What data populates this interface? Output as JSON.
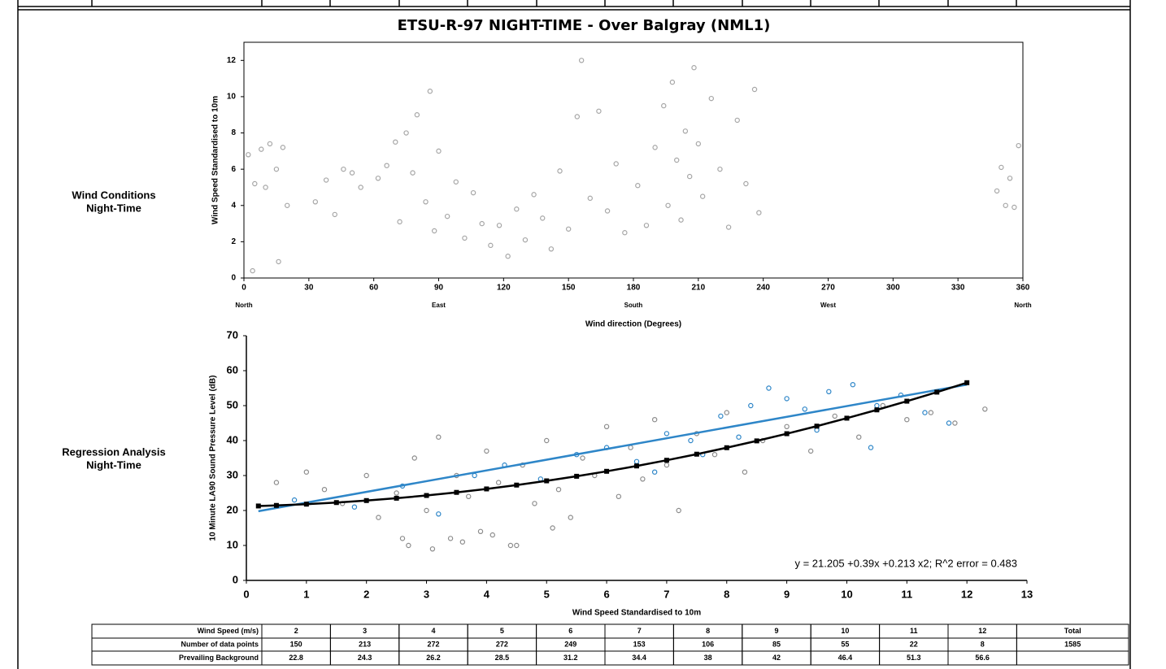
{
  "sections": [
    {
      "line1": "Wind Conditions",
      "line2": "Night-Time"
    },
    {
      "line1": "Regression Analysis",
      "line2": "Night-Time"
    }
  ],
  "chart_data": [
    {
      "type": "scatter",
      "title": "ETSU-R-97 NIGHT-TIME - Over Balgray (NML1)",
      "x_label": "Wind direction (Degrees)",
      "y_label": "Wind Speed Standardised to 10m",
      "xlim": [
        0,
        360
      ],
      "xticks": [
        0,
        30,
        60,
        90,
        120,
        150,
        180,
        210,
        240,
        270,
        300,
        330,
        360
      ],
      "ylim": [
        0,
        13
      ],
      "yticks": [
        0,
        2,
        4,
        6,
        8,
        10,
        12
      ],
      "direction_labels": [
        {
          "value": 0,
          "label": "North"
        },
        {
          "value": 90,
          "label": "East"
        },
        {
          "value": 180,
          "label": "South"
        },
        {
          "value": 270,
          "label": "West"
        },
        {
          "value": 360,
          "label": "North"
        }
      ],
      "series": [
        {
          "kind": "points",
          "color": "#a6a6a6",
          "x": [
            2,
            5,
            8,
            12,
            15,
            18,
            20,
            4,
            10,
            16,
            33,
            38,
            42,
            46,
            50,
            54,
            62,
            66,
            70,
            72,
            75,
            78,
            80,
            84,
            86,
            88,
            90,
            94,
            98,
            102,
            106,
            110,
            114,
            118,
            122,
            126,
            130,
            134,
            138,
            142,
            146,
            150,
            154,
            156,
            160,
            164,
            168,
            172,
            176,
            182,
            186,
            190,
            194,
            196,
            198,
            200,
            202,
            204,
            206,
            208,
            210,
            212,
            216,
            220,
            224,
            228,
            232,
            236,
            238,
            348,
            350,
            352,
            354,
            356,
            358
          ],
          "values": [
            6.8,
            5.2,
            7.1,
            7.4,
            6.0,
            7.2,
            4.0,
            0.4,
            5.0,
            0.9,
            4.2,
            5.4,
            3.5,
            6.0,
            5.8,
            5.0,
            5.5,
            6.2,
            7.5,
            3.1,
            8.0,
            5.8,
            9.0,
            4.2,
            10.3,
            2.6,
            7.0,
            3.4,
            5.3,
            2.2,
            4.7,
            3.0,
            1.8,
            2.9,
            1.2,
            3.8,
            2.1,
            4.6,
            3.3,
            1.6,
            5.9,
            2.7,
            8.9,
            12.0,
            4.4,
            9.2,
            3.7,
            6.3,
            2.5,
            5.1,
            2.9,
            7.2,
            9.5,
            4.0,
            10.8,
            6.5,
            3.2,
            8.1,
            5.6,
            11.6,
            7.4,
            4.5,
            9.9,
            6.0,
            2.8,
            8.7,
            5.2,
            10.4,
            3.6,
            4.8,
            6.1,
            4.0,
            5.5,
            3.9,
            7.3
          ]
        }
      ]
    },
    {
      "type": "scatter",
      "x_label": "Wind Speed Standardised to 10m",
      "y_label": "10 Minute LA90 Sound Pressure Level (dB)",
      "annotation": "y = 21.205 +0.39x +0.213 x2; R^2 error = 0.483",
      "xlim": [
        0,
        13
      ],
      "xticks": [
        0,
        1,
        2,
        3,
        4,
        5,
        6,
        7,
        8,
        9,
        10,
        11,
        12,
        13
      ],
      "ylim": [
        0,
        70
      ],
      "yticks": [
        0,
        10,
        20,
        30,
        40,
        50,
        60,
        70
      ],
      "series": [
        {
          "kind": "points",
          "color": "#8c8c8c",
          "x": [
            0.5,
            1,
            1.3,
            1.6,
            2,
            2.2,
            2.5,
            2.7,
            2.8,
            3,
            3.2,
            3.4,
            3.5,
            3.7,
            3.9,
            4,
            4.2,
            4.4,
            4.6,
            4.8,
            5,
            5.2,
            5.4,
            5.6,
            5.8,
            6,
            6.2,
            6.4,
            6.6,
            6.8,
            7,
            7.2,
            7.5,
            7.8,
            8,
            8.3,
            8.6,
            9,
            9.4,
            9.8,
            10.2,
            10.6,
            11,
            11.4,
            11.8,
            12.3,
            2.6,
            3.1,
            3.6,
            4.1,
            4.5,
            5.1
          ],
          "values": [
            28,
            31,
            26,
            22,
            30,
            18,
            25,
            10,
            35,
            20,
            41,
            12,
            30,
            24,
            14,
            37,
            28,
            10,
            33,
            22,
            40,
            26,
            18,
            35,
            30,
            44,
            24,
            38,
            29,
            46,
            33,
            20,
            42,
            36,
            48,
            31,
            40,
            44,
            37,
            47,
            41,
            50,
            46,
            48,
            45,
            49,
            12,
            9,
            11,
            13,
            10,
            15
          ]
        },
        {
          "kind": "points",
          "color": "#2e86c8",
          "x": [
            0.8,
            1.8,
            2.6,
            3.2,
            3.8,
            4.3,
            4.9,
            5.5,
            6,
            6.5,
            7,
            7.4,
            7.9,
            8.4,
            8.7,
            9,
            9.3,
            9.7,
            10.1,
            10.5,
            10.9,
            11.3,
            11.7,
            6.8,
            7.6,
            8.2,
            9.5,
            10.4
          ],
          "values": [
            23,
            21,
            27,
            19,
            30,
            33,
            29,
            36,
            38,
            34,
            42,
            40,
            47,
            50,
            55,
            52,
            49,
            54,
            56,
            50,
            53,
            48,
            45,
            31,
            36,
            41,
            43,
            38
          ]
        },
        {
          "kind": "line",
          "color": "#2e86c8",
          "x": [
            0.2,
            12
          ],
          "values": [
            19.8,
            56
          ]
        },
        {
          "kind": "line",
          "marker": "square",
          "color": "#000000",
          "x": [
            0.2,
            0.5,
            1,
            1.5,
            2,
            2.5,
            3,
            3.5,
            4,
            4.5,
            5,
            5.5,
            6,
            6.5,
            7,
            7.5,
            8,
            8.5,
            9,
            9.5,
            10,
            10.5,
            11,
            11.5,
            12
          ],
          "values": [
            21.29,
            21.45,
            21.81,
            22.27,
            22.84,
            23.51,
            24.29,
            25.18,
            26.17,
            27.27,
            28.48,
            29.79,
            31.21,
            32.74,
            34.37,
            36.11,
            37.96,
            39.91,
            41.97,
            44.13,
            46.41,
            48.78,
            51.27,
            53.86,
            56.56
          ]
        }
      ]
    }
  ],
  "table": {
    "rows": [
      [
        "Wind Speed (m/s)",
        2,
        3,
        4,
        5,
        6,
        7,
        8,
        9,
        10,
        11,
        12,
        "Total"
      ],
      [
        "Number of data points",
        150,
        213,
        272,
        272,
        249,
        153,
        106,
        85,
        55,
        22,
        8,
        1585
      ],
      [
        "Prevailing Background",
        22.8,
        24.3,
        26.2,
        28.5,
        31.2,
        34.4,
        38,
        42,
        46.4,
        51.3,
        56.6
      ]
    ]
  }
}
